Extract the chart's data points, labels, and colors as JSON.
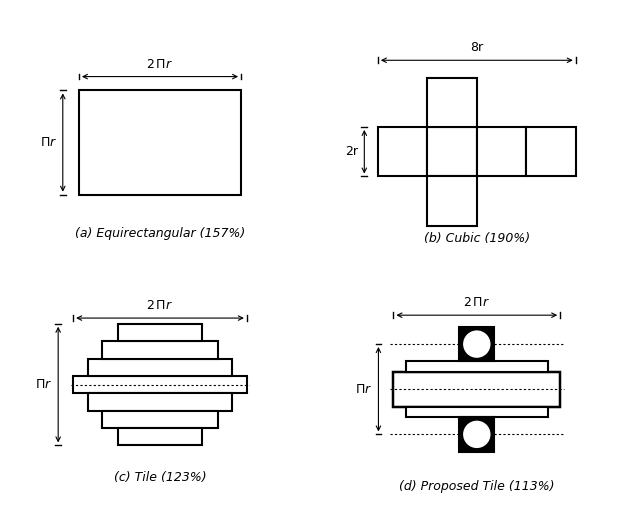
{
  "bg_color": "#ffffff",
  "subfig_labels": [
    "(a) Equirectangular (157%)",
    "(b) Cubic (190%)",
    "(c) Tile (123%)",
    "(d) Proposed Tile (113%)"
  ],
  "lw": 1.5,
  "font_size": 9
}
